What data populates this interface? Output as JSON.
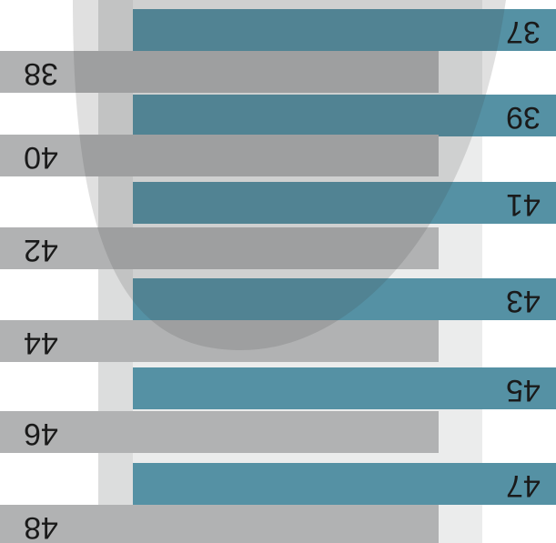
{
  "sizes": [
    "37",
    "38",
    "39",
    "40",
    "41",
    "42",
    "43",
    "44",
    "45",
    "46",
    "47",
    "48"
  ]
}
